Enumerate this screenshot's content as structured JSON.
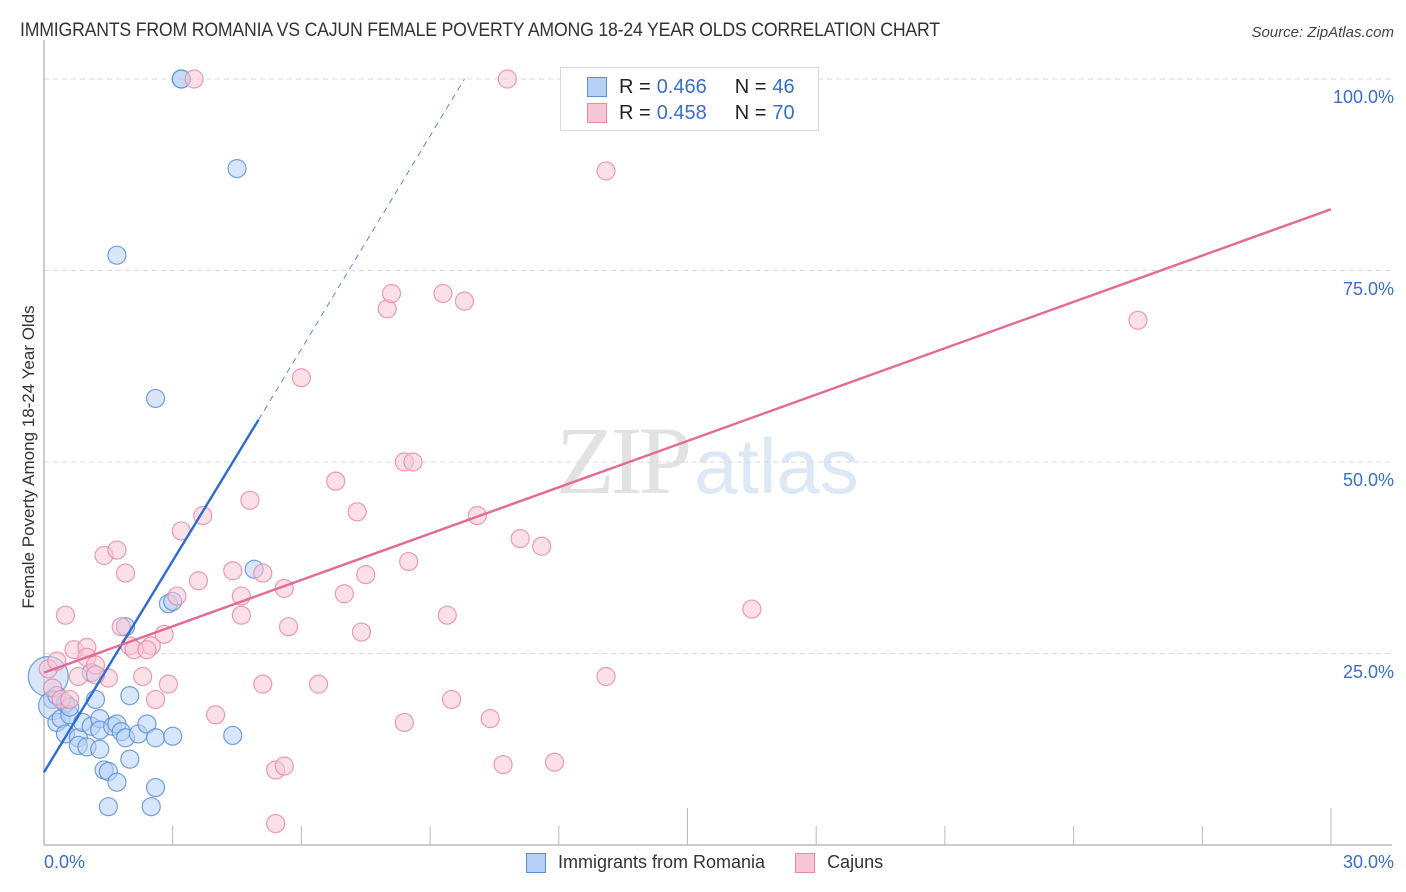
{
  "header": {
    "title": "IMMIGRANTS FROM ROMANIA VS CAJUN FEMALE POVERTY AMONG 18-24 YEAR OLDS CORRELATION CHART",
    "source": "Source: ZipAtlas.com"
  },
  "watermark": {
    "zip": "ZIP",
    "atlas": "atlas"
  },
  "colors": {
    "romania_fill": "#b6d1f5",
    "romania_stroke": "#5b8fd8",
    "romania_line": "#2a6ccf",
    "cajun_fill": "#f9c6d5",
    "cajun_stroke": "#e88aa8",
    "cajun_line": "#e46a94",
    "tick_label": "#3a6fc4",
    "grid": "#d9d9d9",
    "axis": "#bbbbbb"
  },
  "legend": {
    "rows": [
      {
        "series": "romania",
        "r_label": "R =",
        "r_value": "0.466",
        "n_label": "N =",
        "n_value": "46"
      },
      {
        "series": "cajun",
        "r_label": "R =",
        "r_value": "0.458",
        "n_label": "N =",
        "n_value": "70"
      }
    ]
  },
  "bottom_legend": [
    {
      "series": "romania",
      "label": "Immigrants from Romania"
    },
    {
      "series": "cajun",
      "label": "Cajuns"
    }
  ],
  "axes": {
    "x_min_label": "0.0%",
    "x_max_label": "30.0%",
    "y_ticks": [
      {
        "value": 100,
        "label": "100.0%"
      },
      {
        "value": 75,
        "label": "75.0%"
      },
      {
        "value": 50,
        "label": "50.0%"
      },
      {
        "value": 25,
        "label": "25.0%"
      }
    ],
    "ylabel": "Female Poverty Among 18-24 Year Olds"
  },
  "chart_data": {
    "type": "scatter",
    "title": "IMMIGRANTS FROM ROMANIA VS CAJUN FEMALE POVERTY AMONG 18-24 YEAR OLDS CORRELATION CHART",
    "xlabel": "",
    "ylabel": "Female Poverty Among 18-24 Year Olds",
    "xlim": [
      0,
      30
    ],
    "ylim": [
      0,
      100
    ],
    "x_ticks_minor_every": 3,
    "grid": "horizontal dashed at 25, 50, 75, 100",
    "legend_position": "top-center",
    "series": [
      {
        "name": "Immigrants from Romania",
        "key": "romania",
        "R": 0.466,
        "N": 46,
        "trendline": {
          "x0": 0.0,
          "y0": 9.5,
          "x1": 5.0,
          "y1": 55.5,
          "dashed_to": {
            "x": 9.8,
            "y": 100
          }
        },
        "points": [
          [
            0.1,
            22.0,
            20
          ],
          [
            0.2,
            19.0
          ],
          [
            0.2,
            18.2,
            14
          ],
          [
            0.3,
            16.0
          ],
          [
            0.4,
            16.5
          ],
          [
            0.5,
            18.5
          ],
          [
            0.6,
            17.0
          ],
          [
            0.5,
            14.5
          ],
          [
            0.8,
            14.0
          ],
          [
            0.8,
            13.0
          ],
          [
            0.9,
            16.0
          ],
          [
            1.1,
            15.5
          ],
          [
            1.0,
            12.8
          ],
          [
            1.1,
            22.5
          ],
          [
            1.2,
            19.0
          ],
          [
            1.3,
            16.5
          ],
          [
            1.3,
            15.0
          ],
          [
            1.6,
            15.5
          ],
          [
            1.7,
            15.8
          ],
          [
            1.8,
            14.8
          ],
          [
            1.9,
            14.0
          ],
          [
            1.3,
            12.5
          ],
          [
            1.4,
            9.8
          ],
          [
            1.5,
            9.6
          ],
          [
            1.7,
            8.2
          ],
          [
            1.5,
            5.0
          ],
          [
            2.0,
            11.2
          ],
          [
            2.0,
            19.5
          ],
          [
            2.2,
            14.5
          ],
          [
            2.4,
            15.8
          ],
          [
            2.6,
            7.5
          ],
          [
            2.5,
            5.0
          ],
          [
            2.9,
            31.5
          ],
          [
            3.0,
            31.8
          ],
          [
            1.9,
            28.5
          ],
          [
            2.6,
            14.0
          ],
          [
            3.0,
            14.2
          ],
          [
            4.4,
            14.3
          ],
          [
            4.9,
            36.0
          ],
          [
            2.6,
            58.3
          ],
          [
            1.7,
            77.0
          ],
          [
            3.2,
            100
          ],
          [
            3.2,
            100
          ],
          [
            4.5,
            88.3
          ],
          [
            0.3,
            19.5
          ],
          [
            0.6,
            18.0
          ]
        ]
      },
      {
        "name": "Cajuns",
        "key": "cajun",
        "R": 0.458,
        "N": 70,
        "trendline": {
          "x0": 0.0,
          "y0": 22.5,
          "x1": 30.0,
          "y1": 83.0
        },
        "points": [
          [
            0.1,
            23.0
          ],
          [
            0.2,
            20.5
          ],
          [
            0.3,
            24.0
          ],
          [
            0.4,
            19.0
          ],
          [
            0.5,
            30.0
          ],
          [
            0.7,
            25.5
          ],
          [
            0.8,
            22.0
          ],
          [
            1.0,
            25.8
          ],
          [
            1.0,
            24.5
          ],
          [
            1.2,
            23.5
          ],
          [
            1.4,
            37.8
          ],
          [
            1.7,
            38.5
          ],
          [
            1.5,
            21.8
          ],
          [
            1.9,
            35.5
          ],
          [
            1.8,
            28.5
          ],
          [
            2.0,
            26.0
          ],
          [
            2.1,
            25.5
          ],
          [
            2.3,
            22.0
          ],
          [
            2.5,
            26.0
          ],
          [
            2.6,
            19.0
          ],
          [
            2.8,
            27.5
          ],
          [
            2.9,
            21.0
          ],
          [
            3.1,
            32.5
          ],
          [
            3.2,
            41.0
          ],
          [
            3.6,
            34.5
          ],
          [
            3.7,
            43.0
          ],
          [
            4.0,
            17.0
          ],
          [
            4.4,
            35.8
          ],
          [
            4.6,
            32.5
          ],
          [
            4.6,
            30.0
          ],
          [
            4.8,
            45.0
          ],
          [
            5.1,
            35.5
          ],
          [
            5.6,
            33.5
          ],
          [
            5.7,
            28.5
          ],
          [
            5.1,
            21.0
          ],
          [
            5.4,
            9.8
          ],
          [
            5.6,
            10.3
          ],
          [
            5.4,
            2.8
          ],
          [
            6.0,
            61.0
          ],
          [
            6.4,
            21.0
          ],
          [
            6.8,
            47.5
          ],
          [
            7.0,
            32.8
          ],
          [
            7.3,
            43.5
          ],
          [
            7.5,
            35.3
          ],
          [
            7.4,
            27.8
          ],
          [
            8.0,
            70.0
          ],
          [
            8.1,
            72.0
          ],
          [
            8.4,
            50.0
          ],
          [
            8.6,
            50.0
          ],
          [
            8.5,
            37.0
          ],
          [
            8.4,
            16.0
          ],
          [
            9.3,
            72.0
          ],
          [
            9.8,
            71.0
          ],
          [
            9.4,
            30.0
          ],
          [
            9.5,
            19.0
          ],
          [
            10.1,
            43.0
          ],
          [
            10.4,
            16.5
          ],
          [
            10.7,
            10.5
          ],
          [
            11.1,
            40.0
          ],
          [
            11.6,
            39.0
          ],
          [
            11.9,
            10.8
          ],
          [
            13.1,
            22.0
          ],
          [
            10.8,
            100
          ],
          [
            13.1,
            88.0
          ],
          [
            16.5,
            30.8
          ],
          [
            25.5,
            68.5
          ],
          [
            2.4,
            25.5
          ],
          [
            0.6,
            19.0
          ],
          [
            1.2,
            22.2
          ],
          [
            3.5,
            100
          ]
        ]
      }
    ]
  }
}
